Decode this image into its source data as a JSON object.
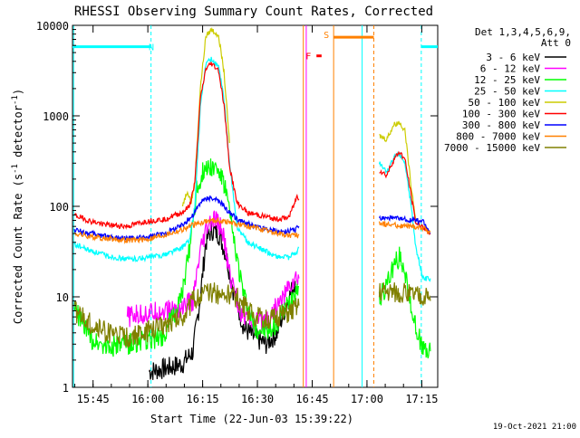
{
  "chart_data": {
    "type": "line",
    "title": "RHESSI Observing Summary Count Rates, Corrected",
    "xlabel": "Start Time (22-Jun-03 15:39:22)",
    "ylabel_main": "Corrected Count Rate (s",
    "ylabel_sup1": "-1",
    "ylabel_mid": " detector",
    "ylabel_sup2": "-1",
    "ylabel_end": ")",
    "y_scale": "log",
    "ylim": [
      1,
      10000
    ],
    "x_range_minutes": [
      "15:39:22",
      "17:19:22"
    ],
    "x_ticks": [
      {
        "m": 5.63,
        "label": "15:45"
      },
      {
        "m": 20.63,
        "label": "16:00"
      },
      {
        "m": 35.63,
        "label": "16:15"
      },
      {
        "m": 50.63,
        "label": "16:30"
      },
      {
        "m": 65.63,
        "label": "16:45"
      },
      {
        "m": 80.63,
        "label": "17:00"
      },
      {
        "m": 95.63,
        "label": "17:15"
      }
    ],
    "y_ticks": [
      {
        "v": 1,
        "label": "1"
      },
      {
        "v": 10,
        "label": "10"
      },
      {
        "v": 100,
        "label": "100"
      },
      {
        "v": 1000,
        "label": "1000"
      },
      {
        "v": 10000,
        "label": "10000"
      }
    ],
    "legend_title": "Det 1,3,4,5,6,9,",
    "legend_subtitle": "Att 0",
    "series": [
      {
        "name": "3 - 6 keV",
        "color": "#000000",
        "x": [
          21.0,
          25.0,
          30.0,
          33.0,
          35.0,
          36.5,
          38.0,
          40.0,
          42.0,
          44.0,
          47.0,
          50.0,
          53.0,
          56.0,
          58.5,
          61.0
        ],
        "y": [
          1.5,
          1.6,
          1.8,
          2.5,
          10,
          40,
          55,
          50,
          30,
          12,
          4.5,
          3.5,
          3.0,
          4.0,
          8.0,
          15
        ]
      },
      {
        "name": "6 - 12 keV",
        "color": "#ff00ff",
        "x": [
          15.0,
          20.0,
          25.0,
          30.0,
          33.0,
          35.0,
          37.0,
          39.0,
          41.0,
          43.0,
          46.0,
          50.0,
          54.0,
          57.0,
          60.0,
          62.0
        ],
        "y": [
          6.0,
          6.5,
          7.0,
          7.5,
          9.0,
          30,
          60,
          70,
          55,
          18,
          7,
          5,
          6,
          9,
          14,
          16
        ]
      },
      {
        "name": "12 - 25 keV",
        "color": "#00ff00",
        "x": [
          0.5,
          5,
          10,
          15,
          20,
          25,
          30,
          32,
          34,
          36,
          38,
          40,
          42,
          44,
          47,
          50,
          54,
          58,
          61,
          62,
          84.0,
          86.0,
          88.0,
          89.5,
          91.0,
          92.5,
          94.0,
          96.0,
          98.0
        ],
        "y": [
          7.5,
          3.5,
          2.8,
          3.0,
          3.2,
          3.8,
          10,
          35,
          150,
          260,
          280,
          250,
          150,
          45,
          10,
          4.5,
          4.0,
          7.0,
          12,
          13,
          9,
          14,
          22,
          28,
          20,
          8,
          5,
          2.5,
          2.5
        ]
      },
      {
        "name": "25 - 50 keV",
        "color": "#00ffff",
        "x": [
          0.5,
          5,
          10,
          15,
          20,
          25,
          30,
          32,
          33.5,
          35,
          36.5,
          38,
          40,
          41.5,
          43,
          45,
          48,
          52,
          56,
          59,
          61,
          62,
          84.0,
          86.0,
          88.0,
          89.5,
          91.0,
          92.5,
          94.0,
          96.0,
          98.0
        ],
        "y": [
          38,
          32,
          28,
          26,
          27,
          29,
          35,
          42,
          100,
          1200,
          3800,
          4200,
          3500,
          1500,
          300,
          60,
          40,
          33,
          28,
          27,
          30,
          35,
          300,
          240,
          340,
          380,
          300,
          120,
          35,
          16,
          16
        ]
      },
      {
        "name": "50 - 100 keV",
        "color": "#cccc00",
        "x": [
          30,
          31.5,
          32.5,
          33.5,
          35,
          36.5,
          38,
          40,
          41.5,
          43,
          84.0,
          86.0,
          88.0,
          89.5,
          91.0,
          92.5,
          94.0
        ],
        "y": [
          100,
          150,
          110,
          180,
          2000,
          7500,
          9000,
          7800,
          3000,
          500,
          600,
          550,
          800,
          850,
          700,
          200,
          70
        ]
      },
      {
        "name": "100 - 300 keV",
        "color": "#ff0000",
        "x": [
          0.5,
          5,
          10,
          15,
          20,
          25,
          30,
          32,
          33.5,
          35,
          36.5,
          38,
          40,
          41.5,
          43,
          45,
          48,
          52,
          56,
          59,
          60.5,
          61.5,
          62,
          84.0,
          86.0,
          88.0,
          89.5,
          91.0,
          92.5,
          94.0,
          96.0,
          98.0
        ],
        "y": [
          80,
          68,
          62,
          60,
          68,
          72,
          85,
          100,
          180,
          1500,
          3300,
          3800,
          3200,
          1300,
          280,
          110,
          85,
          78,
          72,
          75,
          100,
          130,
          120,
          250,
          220,
          330,
          400,
          330,
          150,
          65,
          60,
          50
        ]
      },
      {
        "name": "300 - 800 keV",
        "color": "#0000ff",
        "x": [
          0.5,
          5,
          10,
          15,
          20,
          25,
          30,
          33,
          35,
          37,
          39,
          41,
          43,
          46,
          50,
          54,
          58,
          61,
          62,
          84.0,
          87.0,
          90.0,
          93.0,
          96.0,
          98.0
        ],
        "y": [
          55,
          50,
          46,
          44,
          45,
          50,
          62,
          80,
          110,
          125,
          120,
          105,
          85,
          68,
          60,
          55,
          52,
          55,
          60,
          75,
          74,
          72,
          70,
          68,
          50
        ]
      },
      {
        "name": "800 - 7000 keV",
        "color": "#ff8000",
        "x": [
          0.5,
          5,
          10,
          15,
          20,
          25,
          30,
          33,
          36,
          39,
          42,
          45,
          48,
          52,
          56,
          60,
          62,
          84.0,
          87.0,
          90.0,
          93.0,
          96.0,
          98.0
        ],
        "y": [
          50,
          46,
          44,
          42,
          43,
          48,
          55,
          62,
          68,
          70,
          68,
          64,
          60,
          55,
          50,
          47,
          48,
          65,
          63,
          61,
          60,
          58,
          52
        ]
      },
      {
        "name": "7000 - 15000 keV",
        "color": "#808000",
        "x": [
          0.5,
          5,
          10,
          15,
          20,
          25,
          30,
          33,
          36,
          39,
          42,
          45,
          48,
          52,
          56,
          60,
          62,
          84.0,
          87.0,
          90.0,
          93.0,
          96.0,
          98.0
        ],
        "y": [
          7,
          5,
          4,
          3.5,
          4,
          5,
          6,
          9,
          11,
          11,
          10.5,
          10,
          7,
          5.5,
          6,
          7,
          8,
          11.5,
          11.5,
          11,
          10.5,
          10,
          9
        ]
      }
    ],
    "bars": [
      {
        "label": "N",
        "color": "#00ffff",
        "segments": [
          [
            0.0,
            21.5
          ],
          [
            95.5,
            100.0
          ]
        ],
        "y": 5800
      },
      {
        "label": "F",
        "color": "#ff0000",
        "segments": [
          [
            66.8,
            68.2
          ]
        ],
        "y": 4600
      },
      {
        "label": "S",
        "color": "#ff8000",
        "segments": [
          [
            71.5,
            82.5
          ]
        ],
        "y": 7400
      }
    ],
    "markers": [
      {
        "x": 0.3,
        "color": "#00ffff",
        "style": "solid"
      },
      {
        "x": 21.5,
        "color": "#00ffff",
        "style": "dashed"
      },
      {
        "x": 63.2,
        "color": "#ff8000",
        "style": "solid"
      },
      {
        "x": 64.0,
        "color": "#ff00ff",
        "style": "solid"
      },
      {
        "x": 71.5,
        "color": "#ff8000",
        "style": "solid"
      },
      {
        "x": 79.3,
        "color": "#00ffff",
        "style": "solid"
      },
      {
        "x": 82.5,
        "color": "#ff8000",
        "style": "dashed"
      },
      {
        "x": 95.5,
        "color": "#00ffff",
        "style": "dashed"
      }
    ],
    "grid": false,
    "legend_position": "right"
  },
  "footer": {
    "timestamp": "19-Oct-2021 21:00"
  }
}
